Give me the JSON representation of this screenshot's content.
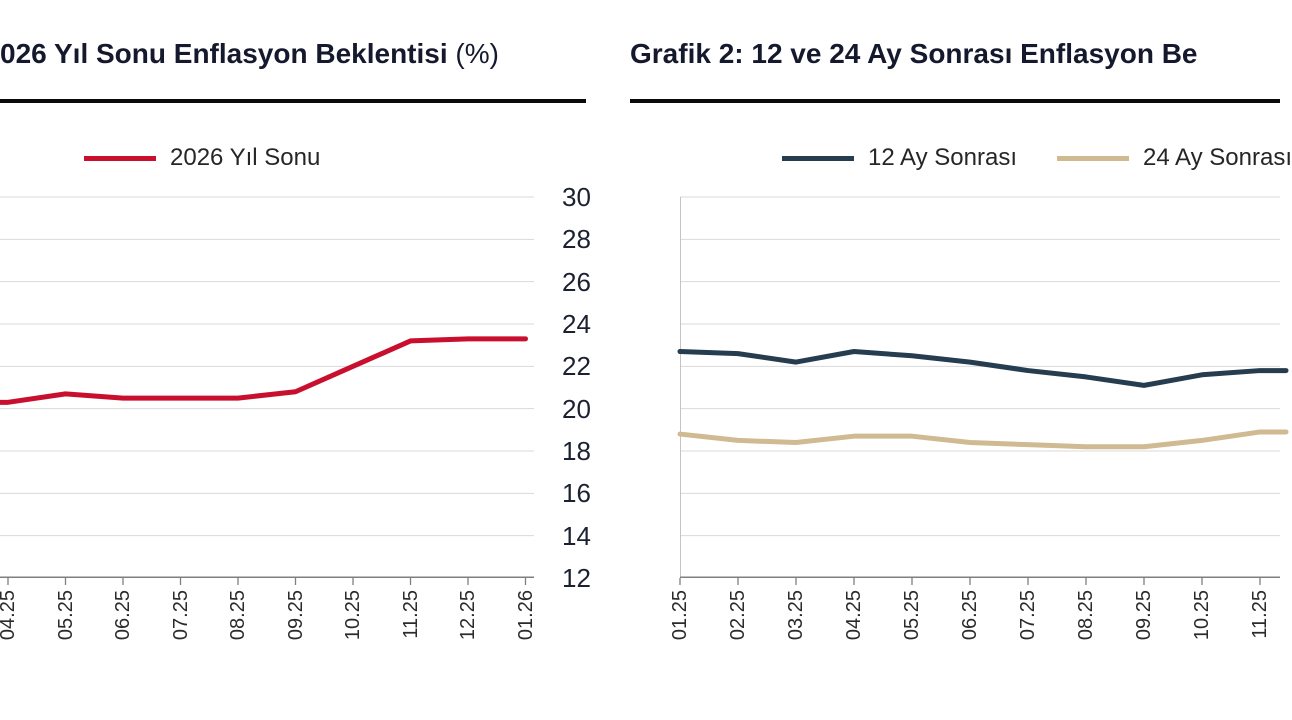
{
  "colors": {
    "background": "#ffffff",
    "grid": "#d9d9d9",
    "axis": "#7f7f7f",
    "title": "#15192e",
    "tick_text": "#2b2b2b",
    "ytick_text": "#1b2130",
    "series_red": "#c8102e",
    "series_navy": "#263c4f",
    "series_tan": "#cfba92"
  },
  "chart_data": [
    {
      "type": "line",
      "title": "026 Yıl Sonu Enflasyon Beklentisi",
      "title_suffix": "(%)",
      "x": [
        "04.25",
        "05.25",
        "06.25",
        "07.25",
        "08.25",
        "09.25",
        "10.25",
        "11.25",
        "12.25",
        "01.26"
      ],
      "series": [
        {
          "name": "2026 Yıl Sonu",
          "color": "#c8102e",
          "values": [
            20.3,
            20.7,
            20.5,
            20.5,
            20.5,
            20.8,
            22.0,
            23.2,
            23.3,
            23.3
          ]
        }
      ],
      "ylim": [
        12,
        30
      ],
      "yticks": [
        30,
        28,
        26,
        24,
        22,
        20,
        18,
        16,
        14,
        12
      ],
      "ytick_side": "right",
      "grid": "horizontal",
      "legend_position": "top"
    },
    {
      "type": "line",
      "title": "Grafik 2: 12 ve 24 Ay Sonrası Enflasyon Be",
      "title_suffix": "",
      "x": [
        "01.25",
        "02.25",
        "03.25",
        "04.25",
        "05.25",
        "06.25",
        "07.25",
        "08.25",
        "09.25",
        "10.25",
        "11.25"
      ],
      "series": [
        {
          "name": "12 Ay Sonrası",
          "color": "#263c4f",
          "values": [
            22.7,
            22.6,
            22.2,
            22.7,
            22.5,
            22.2,
            21.8,
            21.5,
            21.1,
            21.6,
            21.8
          ]
        },
        {
          "name": "24 Ay Sonrası",
          "color": "#cfba92",
          "values": [
            18.8,
            18.5,
            18.4,
            18.7,
            18.7,
            18.4,
            18.3,
            18.2,
            18.2,
            18.5,
            18.9
          ]
        }
      ],
      "ylim": [
        12,
        30
      ],
      "yticks": [],
      "ytick_side": "none",
      "grid": "horizontal",
      "legend_position": "top"
    }
  ]
}
